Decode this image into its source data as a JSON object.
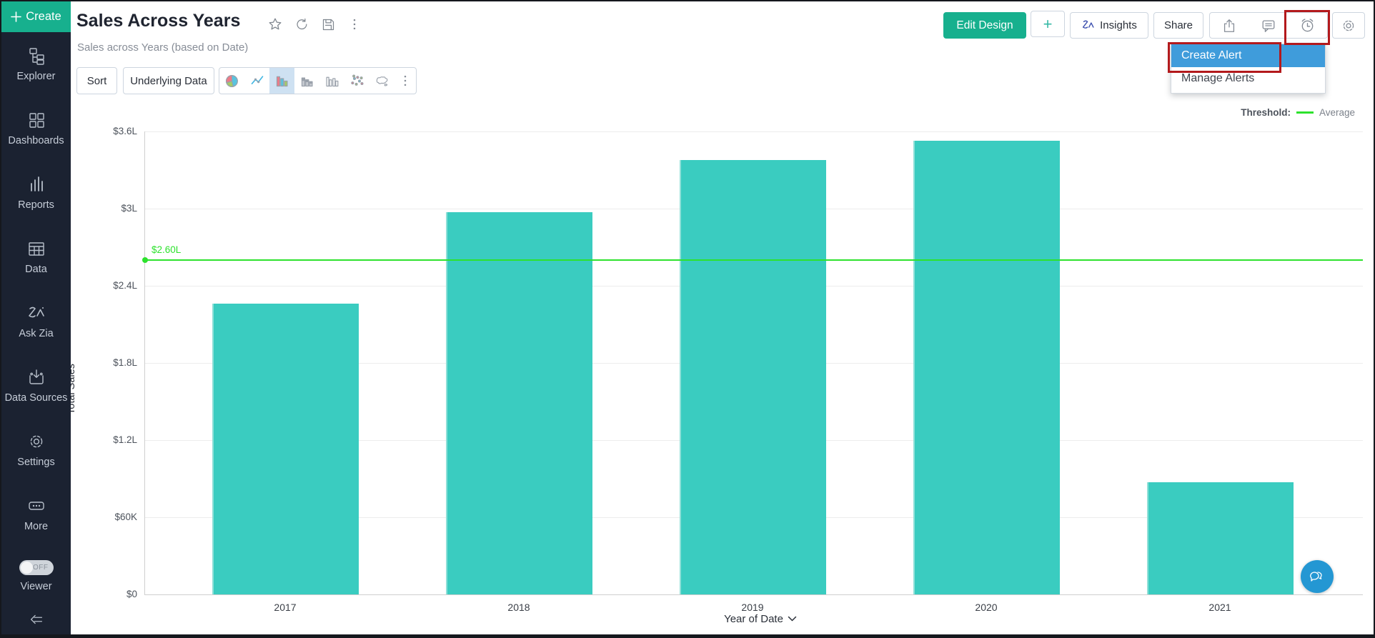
{
  "colors": {
    "green": "#17b08e",
    "teal": "#35b9a5",
    "sidebar-bg": "#1b2231",
    "sidebar-text": "#c6cdd8",
    "bar": "#3accc0",
    "threshold": "#2de22d",
    "menu-blue": "#3f9cdb",
    "annotation-red": "#b3191c",
    "border": "#cdd5df",
    "fab-blue": "#2497d3"
  },
  "sidebar": {
    "create_label": "Create",
    "items": [
      {
        "label": "Explorer",
        "icon": "explorer-icon"
      },
      {
        "label": "Dashboards",
        "icon": "dashboards-icon"
      },
      {
        "label": "Reports",
        "icon": "reports-icon"
      },
      {
        "label": "Data",
        "icon": "data-icon"
      },
      {
        "label": "Ask Zia",
        "icon": "ask-zia-icon"
      },
      {
        "label": "Data Sources",
        "icon": "data-sources-icon"
      },
      {
        "label": "Settings",
        "icon": "settings-icon"
      },
      {
        "label": "More",
        "icon": "more-icon"
      }
    ],
    "viewer": {
      "label": "Viewer",
      "toggle_state": "OFF"
    }
  },
  "header": {
    "title": "Sales Across Years",
    "subtitle": "Sales across Years (based on Date)",
    "title_icons": [
      "favorite-star-icon",
      "refresh-icon",
      "save-icon",
      "more-options-icon"
    ],
    "buttons": {
      "edit_design": "Edit Design",
      "add": "+",
      "insights": "Insights",
      "share": "Share"
    },
    "action_icons": [
      "export-icon",
      "comment-icon",
      "alert-clock-icon"
    ],
    "settings_icon": "settings-gear-icon"
  },
  "alert_menu": {
    "items": [
      {
        "label": "Create Alert",
        "selected": true
      },
      {
        "label": "Manage Alerts",
        "selected": false
      }
    ]
  },
  "toolbar": {
    "sort": "Sort",
    "underlying_data": "Underlying Data",
    "chart_types": [
      "pie-chart-icon",
      "line-chart-icon",
      "bar-chart-icon",
      "stacked-bar-chart-icon",
      "grouped-bar-chart-icon",
      "scatter-chart-icon",
      "map-chart-icon",
      "chart-more-icon"
    ],
    "selected_chart": "bar-chart-icon"
  },
  "legend": {
    "label": "Threshold:",
    "series": "Average"
  },
  "chart_data": {
    "type": "bar",
    "categories": [
      "2017",
      "2018",
      "2019",
      "2020",
      "2021"
    ],
    "values": [
      2.26,
      2.97,
      3.38,
      3.53,
      0.87
    ],
    "values_unit": "lakh (L)",
    "series_name": "Total Sales",
    "xlabel": "Year of Date",
    "ylabel": "Total Sales",
    "ylim": [
      0,
      3.6
    ],
    "yticks": [
      {
        "v": 0,
        "label": "$0"
      },
      {
        "v": 0.6,
        "label": "$60K"
      },
      {
        "v": 1.2,
        "label": "$1.2L"
      },
      {
        "v": 1.8,
        "label": "$1.8L"
      },
      {
        "v": 2.4,
        "label": "$2.4L"
      },
      {
        "v": 3,
        "label": "$3L"
      },
      {
        "v": 3.6,
        "label": "$3.6L"
      }
    ],
    "threshold": {
      "value": 2.6,
      "label": "$2.60L",
      "name": "Average"
    },
    "grid": true,
    "legend_position": "top-right"
  }
}
